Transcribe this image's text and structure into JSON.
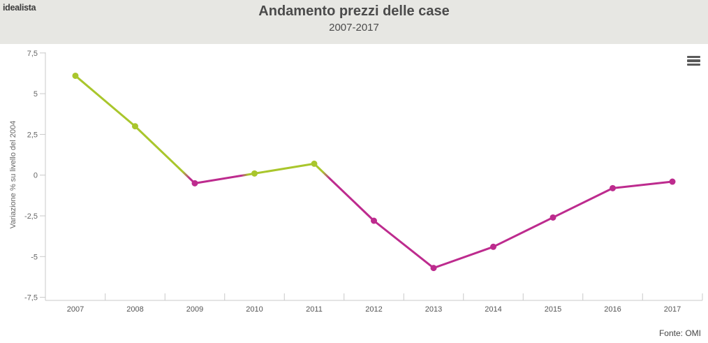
{
  "header": {
    "logo": "idealista",
    "title": "Andamento prezzi delle case",
    "subtitle": "2007-2017"
  },
  "menu": {
    "icon": "hamburger-icon"
  },
  "footer": {
    "source": "Fonte: OMI"
  },
  "colors": {
    "positive_line": "#a9c62c",
    "negative_line": "#bd2b8e",
    "axis": "#c9c9c9",
    "ytick_label": "#666666",
    "xtick_label": "#555555",
    "ylabel_text": "#666666",
    "header_bg": "#e7e7e3"
  },
  "chart_data": {
    "type": "line",
    "title": "Andamento prezzi delle case",
    "subtitle": "2007-2017",
    "x": [
      "2007",
      "2008",
      "2009",
      "2010",
      "2011",
      "2012",
      "2013",
      "2014",
      "2015",
      "2016",
      "2017"
    ],
    "values": [
      6.1,
      3.0,
      -0.5,
      0.1,
      0.7,
      -2.8,
      -5.7,
      -4.4,
      -2.6,
      -0.8,
      -0.4
    ],
    "series_name": "Variazione % su livello del 2004",
    "xlabel": "",
    "ylabel": "Variazione % su livello del 2004",
    "ylim": [
      -7.5,
      7.5
    ],
    "yticks": [
      7.5,
      5,
      2.5,
      0,
      -2.5,
      -5,
      -7.5
    ],
    "ytick_labels": [
      "7,5",
      "5",
      "2,5",
      "0",
      "-2,5",
      "-5",
      "-7,5"
    ],
    "grid": "off",
    "legend": "none",
    "color_rule": "positive values green, negative values magenta, gradient at zero crossings",
    "source": "Fonte: OMI"
  }
}
